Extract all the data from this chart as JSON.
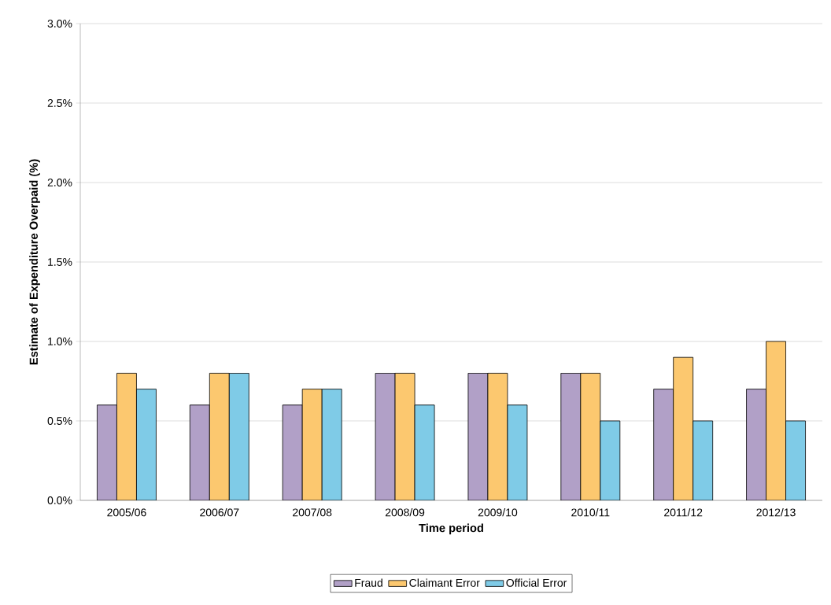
{
  "chart_data": {
    "type": "bar",
    "xlabel": "Time period",
    "ylabel": "Estimate of Expenditure Overpaid (%)",
    "categories": [
      "2005/06",
      "2006/07",
      "2007/08",
      "2008/09",
      "2009/10",
      "2010/11",
      "2011/12",
      "2012/13"
    ],
    "series": [
      {
        "name": "Fraud",
        "color": "#b1a0c7",
        "values": [
          0.6,
          0.6,
          0.6,
          0.8,
          0.8,
          0.8,
          0.7,
          0.7
        ]
      },
      {
        "name": "Claimant Error",
        "color": "#fcc86f",
        "values": [
          0.8,
          0.8,
          0.7,
          0.8,
          0.8,
          0.8,
          0.9,
          1.0
        ]
      },
      {
        "name": "Official Error",
        "color": "#7fcbe7",
        "values": [
          0.7,
          0.8,
          0.7,
          0.6,
          0.6,
          0.5,
          0.5,
          0.5
        ]
      }
    ],
    "ylim": [
      0,
      3.0
    ],
    "yticks": [
      {
        "value": 0,
        "label": "0.0%"
      },
      {
        "value": 0.5,
        "label": "0.5%"
      },
      {
        "value": 1.0,
        "label": "1.0%"
      },
      {
        "value": 1.5,
        "label": "1.5%"
      },
      {
        "value": 2.0,
        "label": "2.0%"
      },
      {
        "value": 2.5,
        "label": "2.5%"
      },
      {
        "value": 3.0,
        "label": "3.0%"
      }
    ],
    "grid": "y",
    "legend": "bottom"
  }
}
